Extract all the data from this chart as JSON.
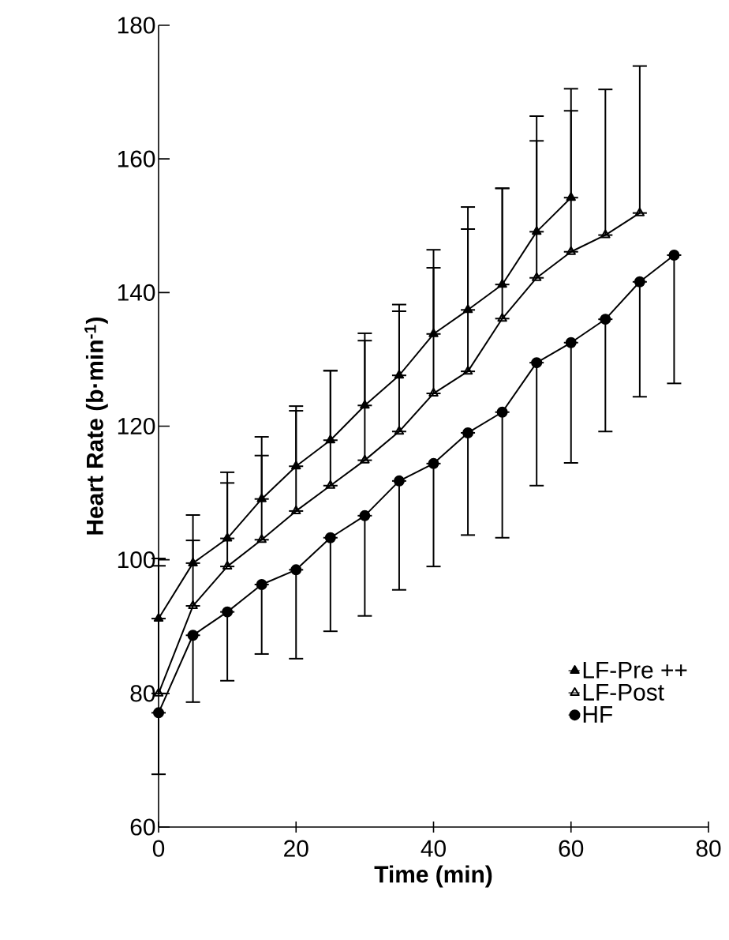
{
  "chart_data": {
    "type": "line",
    "xlabel": "Time (min)",
    "ylabel": "Heart Rate (b·min$^{-1}$)",
    "x": [
      0,
      5,
      10,
      15,
      20,
      25,
      30,
      35,
      40,
      45,
      50,
      55,
      60,
      65,
      70,
      75
    ],
    "xlim": [
      0,
      80
    ],
    "xticks": [
      0,
      20,
      40,
      60,
      80
    ],
    "ylim": [
      60,
      180
    ],
    "yticks": [
      60,
      80,
      100,
      120,
      140,
      160,
      180
    ],
    "grid": false,
    "legend": "bottom right",
    "line_style": "solid",
    "series": [
      {
        "name": "LF-Pre ++",
        "color": "#000000",
        "marker": "triangle",
        "x": [
          0,
          5,
          10,
          15,
          20,
          25,
          30,
          35,
          40,
          45,
          50,
          55,
          60
        ],
        "values": [
          91.2,
          99.5,
          103.2,
          109.1,
          114.0,
          117.9,
          123.1,
          127.6,
          133.8,
          137.4,
          141.2,
          149.1,
          154.2
        ],
        "errors": [
          [
            91.2,
            100.2
          ],
          [
            99.5,
            106.7
          ],
          [
            103.2,
            113.1
          ],
          [
            109.1,
            118.4
          ],
          [
            114.0,
            123.0
          ],
          [
            117.9,
            128.3
          ],
          [
            123.1,
            133.9
          ],
          [
            127.6,
            138.2
          ],
          [
            133.8,
            146.4
          ],
          [
            137.4,
            152.8
          ],
          [
            141.2,
            155.6
          ],
          [
            149.1,
            166.4
          ],
          [
            154.2,
            170.5
          ]
        ]
      },
      {
        "name": "LF-Post",
        "color": "#000000",
        "marker": "triangle-open",
        "x": [
          0,
          5,
          10,
          15,
          20,
          25,
          30,
          35,
          40,
          45,
          50,
          55,
          60,
          65,
          70
        ],
        "values": [
          80.0,
          93.1,
          99.0,
          103.0,
          107.3,
          111.1,
          114.9,
          119.2,
          124.9,
          128.2,
          136.1,
          142.2,
          146.1,
          148.6,
          151.9
        ],
        "errors": [
          [
            80.0,
            99.1
          ],
          [
            93.1,
            102.9
          ],
          [
            99.0,
            111.5
          ],
          [
            103.0,
            115.6
          ],
          [
            107.3,
            122.3
          ],
          [
            111.1,
            128.3
          ],
          [
            114.9,
            132.8
          ],
          [
            119.2,
            137.2
          ],
          [
            124.9,
            143.7
          ],
          [
            128.2,
            149.5
          ],
          [
            136.1,
            155.6
          ],
          [
            142.2,
            162.7
          ],
          [
            146.1,
            167.2
          ],
          [
            148.6,
            170.4
          ],
          [
            151.9,
            173.9
          ]
        ]
      },
      {
        "name": "HF",
        "color": "#000000",
        "marker": "circle",
        "values": [
          77.1,
          88.7,
          92.2,
          96.3,
          98.5,
          103.3,
          106.6,
          111.8,
          114.4,
          119.0,
          122.1,
          129.5,
          132.5,
          136.0,
          141.6,
          145.6
        ],
        "errors": [
          [
            67.9,
            77.1
          ],
          [
            78.7,
            88.7
          ],
          [
            81.9,
            92.2
          ],
          [
            85.9,
            96.3
          ],
          [
            85.2,
            98.5
          ],
          [
            89.3,
            103.3
          ],
          [
            91.6,
            106.6
          ],
          [
            95.5,
            111.8
          ],
          [
            99.0,
            114.4
          ],
          [
            103.7,
            119.0
          ],
          [
            103.3,
            122.1
          ],
          [
            111.1,
            129.5
          ],
          [
            114.5,
            132.5
          ],
          [
            119.2,
            136.0
          ],
          [
            124.4,
            141.6
          ],
          [
            126.4,
            145.6
          ]
        ]
      }
    ]
  }
}
